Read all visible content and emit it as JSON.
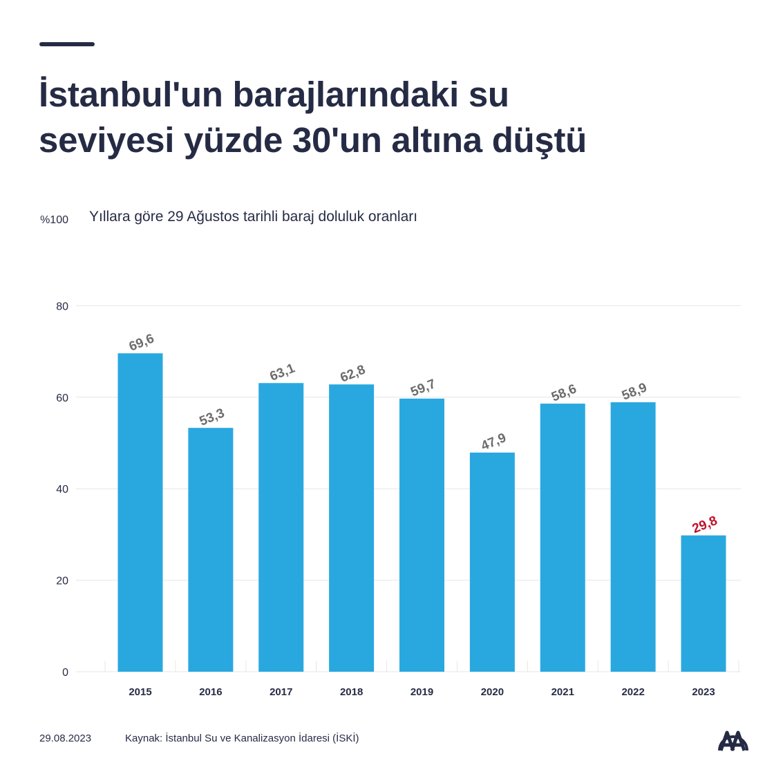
{
  "headline": {
    "line1": "İstanbul'un barajlarındaki su",
    "line2": "seviyesi yüzde 30'un altına düştü"
  },
  "footer": {
    "date": "29.08.2023",
    "source": "Kaynak: İstanbul Su ve Kanalizasyon İdaresi (İSKİ)",
    "logo": "aa-logo-icon"
  },
  "colors": {
    "bar": "#29a8e0",
    "label": "#6b6b6b",
    "highlight": "#c1122a",
    "text": "#262b45",
    "grid": "#e6e6e6"
  },
  "chart_data": {
    "type": "bar",
    "title": "Yıllara göre 29 Ağustos tarihli baraj doluluk oranları",
    "ylabel_top": "%100",
    "xlabel": "",
    "ylim": [
      0,
      100
    ],
    "yticks": [
      "0",
      "20",
      "40",
      "60",
      "80",
      "%100"
    ],
    "ytick_values": [
      0,
      20,
      40,
      60,
      80,
      100
    ],
    "categories": [
      "2015",
      "2016",
      "2017",
      "2018",
      "2019",
      "2020",
      "2021",
      "2022",
      "2023"
    ],
    "values": [
      69.6,
      53.3,
      63.1,
      62.8,
      59.7,
      47.9,
      58.6,
      58.9,
      29.8
    ],
    "value_labels": [
      "69,6",
      "53,3",
      "63,1",
      "62,8",
      "59,7",
      "47,9",
      "58,6",
      "58,9",
      "29,8"
    ],
    "highlight_index": 8
  }
}
